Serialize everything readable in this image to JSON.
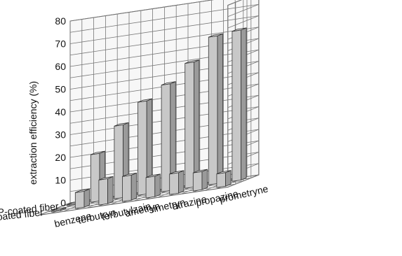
{
  "chart_data": {
    "type": "bar",
    "title": "",
    "ylabel": "extraction efficiency (%)",
    "ylim": [
      0,
      80
    ],
    "yticks": [
      0,
      10,
      20,
      30,
      40,
      50,
      60,
      70,
      80
    ],
    "categories": [
      "benzene",
      "terbutryn",
      "terbutylzain",
      "ametryn",
      "simetryn",
      "atrazine",
      "propazine",
      "prometryne"
    ],
    "series": [
      {
        "name": "MIP-coated fiber",
        "values": [
          0.5,
          21,
          32,
          41,
          47,
          55,
          65,
          66
        ]
      },
      {
        "name": "NIP-coated fiber",
        "values": [
          0.5,
          7,
          11,
          11,
          9,
          9,
          8,
          6
        ]
      }
    ],
    "grid": true,
    "colors": {
      "bar_front": "#c8c8c8",
      "bar_side": "#9a9a9a",
      "bar_top": "#e6e6e6",
      "edge": "#333333"
    }
  }
}
